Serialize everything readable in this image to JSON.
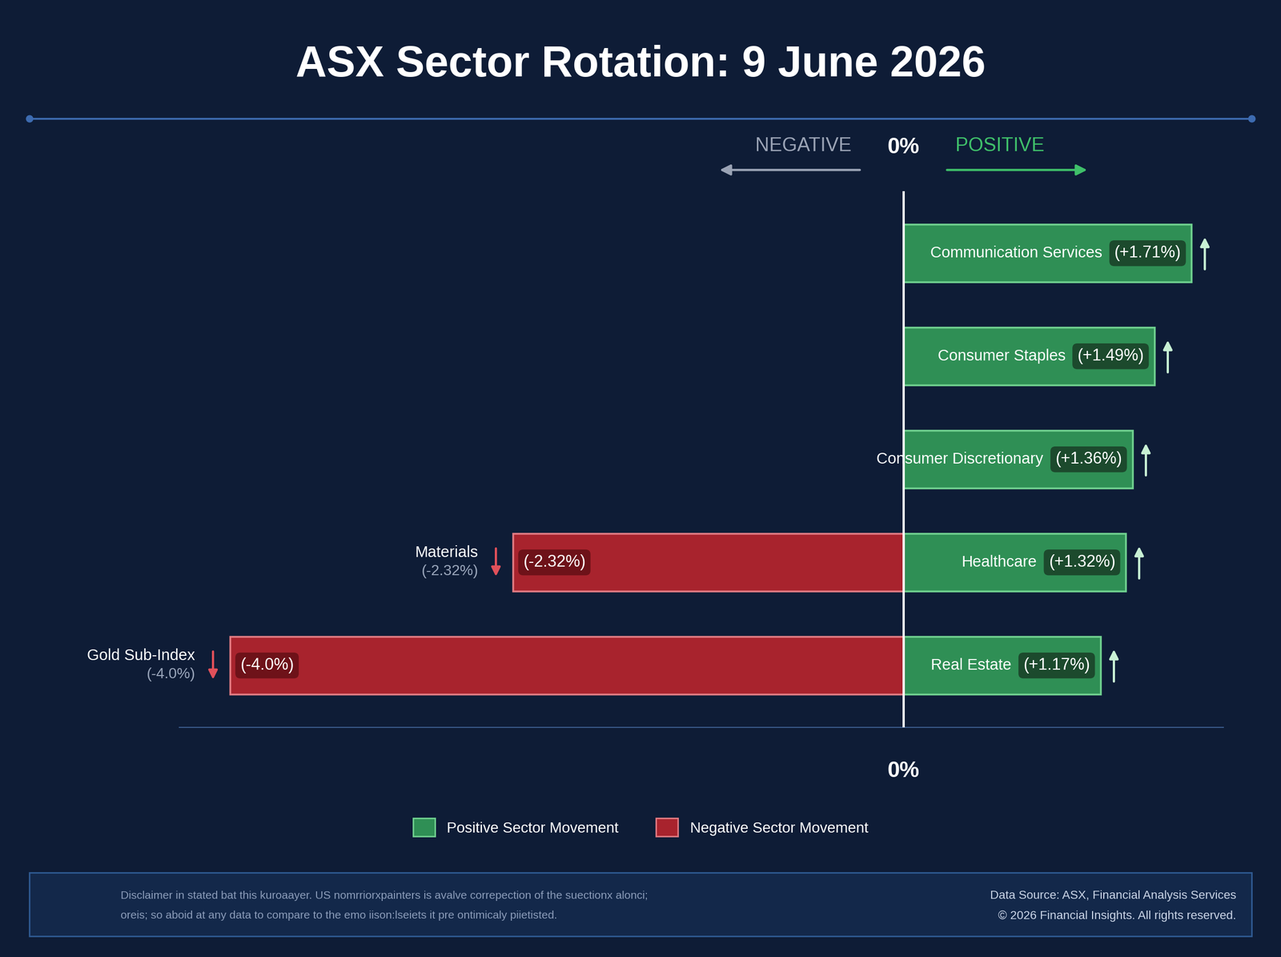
{
  "chart_data": {
    "type": "bar",
    "orientation": "horizontal",
    "title": "ASX Sector Rotation: 9 June 2026",
    "header": {
      "negative": "NEGATIVE",
      "positive": "POSITIVE"
    },
    "categories": [
      "Communication Services",
      "Consumer Staples",
      "Consumer Discretionary",
      "Healthcare",
      "Real Estate"
    ],
    "series": [
      {
        "name": "Positive Sector Movement",
        "color": "#2f8f55",
        "values": [
          1.71,
          1.49,
          1.36,
          1.32,
          1.17
        ],
        "value_labels": [
          "(+1.71%)",
          "(+1.49%)",
          "(+1.36%)",
          "(+1.32%)",
          "(+1.17%)"
        ]
      },
      {
        "name": "Negative Sector Movement",
        "color": "#a8232d",
        "labels": [
          null,
          null,
          null,
          "Materials",
          "Gold Sub-Index"
        ],
        "values": [
          null,
          null,
          null,
          -2.32,
          -4.0
        ],
        "value_labels": [
          null,
          null,
          null,
          "(-2.32%)",
          "(-4.0%)"
        ]
      }
    ],
    "xlim": [
      -4.3,
      1.9
    ],
    "xticks": [
      {
        "value": 0,
        "label": "0%"
      }
    ],
    "tick_labels": "x",
    "data_labels": true,
    "legend": "lower center",
    "footer": {
      "disclaimer": [
        "Disclaimer in stated bat this kuroaayer. US nomrriorxpainters is avalve correpection of the suectionx alonci;",
        "oreis; so aboid at any data to compare to the emo iison:lseiets it pre ontimicaly piietisted."
      ],
      "source": "Data Source: ASX, Financial Analysis Services",
      "copyright": "© 2026 Financial Insights. All rights reserved."
    }
  }
}
